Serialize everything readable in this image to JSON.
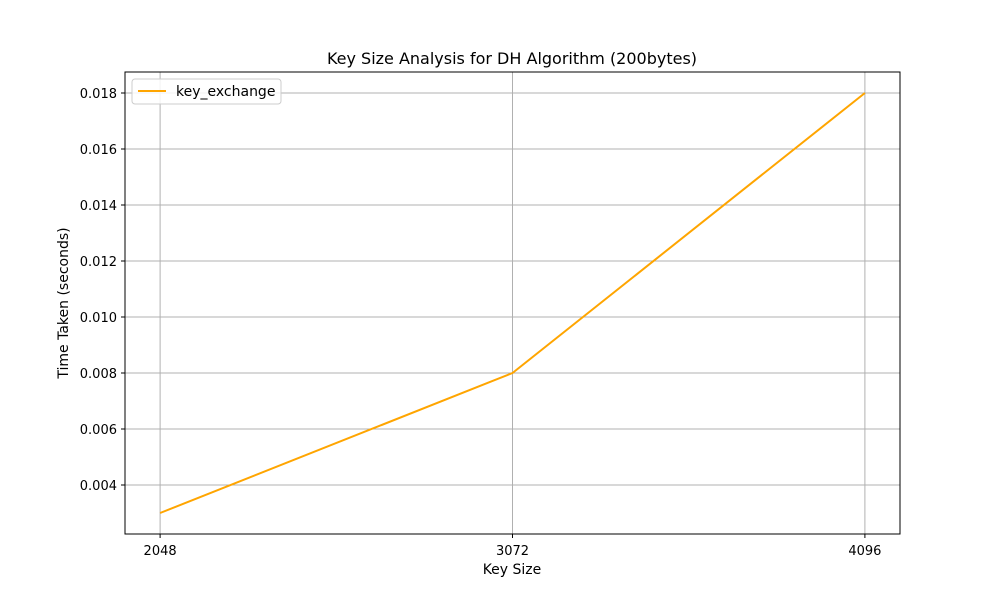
{
  "chart_data": {
    "type": "line",
    "title": "Key Size Analysis for DH Algorithm (200bytes)",
    "xlabel": "Key Size",
    "ylabel": "Time Taken (seconds)",
    "x": [
      2048,
      3072,
      4096
    ],
    "x_tick_labels": [
      "2048",
      "3072",
      "4096"
    ],
    "y_ticks": [
      0.004,
      0.006,
      0.008,
      0.01,
      0.012,
      0.014,
      0.016,
      0.018
    ],
    "y_tick_labels": [
      "0.004",
      "0.006",
      "0.008",
      "0.010",
      "0.012",
      "0.014",
      "0.016",
      "0.018"
    ],
    "xlim": [
      1946,
      4198
    ],
    "ylim": [
      0.00225,
      0.01875
    ],
    "grid": true,
    "legend_position": "top-left",
    "series": [
      {
        "name": "key_exchange",
        "color": "#ffa500",
        "values": [
          0.003,
          0.008,
          0.018
        ]
      }
    ]
  }
}
